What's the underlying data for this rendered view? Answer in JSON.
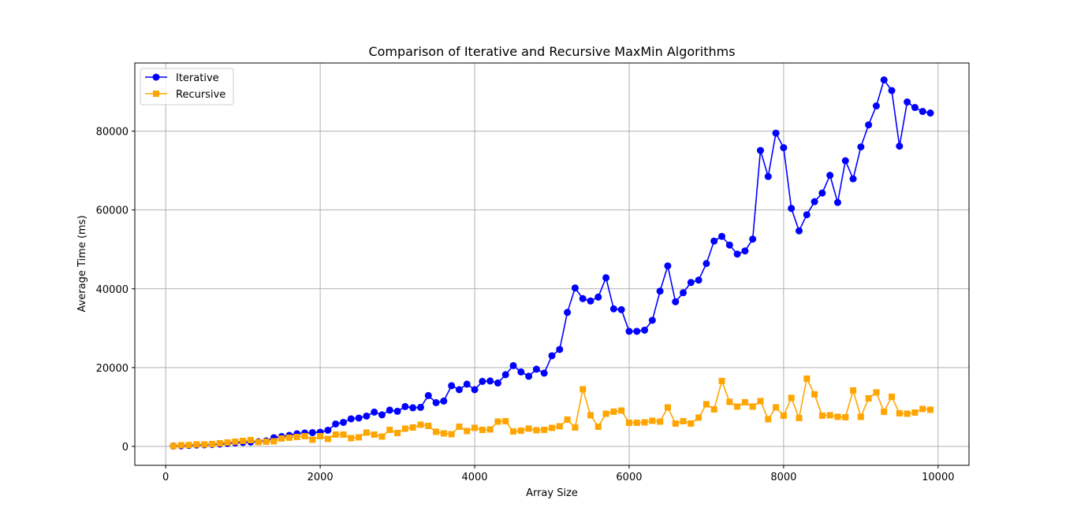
{
  "chart_data": {
    "type": "line",
    "title": "Comparison of Iterative and Recursive MaxMin Algorithms",
    "xlabel": "Array Size",
    "ylabel": "Average Time (ms)",
    "xlim": [
      -400,
      10400
    ],
    "ylim": [
      -4800,
      97300
    ],
    "xticks": [
      0,
      2000,
      4000,
      6000,
      8000,
      10000
    ],
    "yticks": [
      0,
      20000,
      40000,
      60000,
      80000
    ],
    "grid": true,
    "legend_position": "top-left",
    "x": [
      100,
      200,
      300,
      400,
      500,
      600,
      700,
      800,
      900,
      1000,
      1100,
      1200,
      1300,
      1400,
      1500,
      1600,
      1700,
      1800,
      1900,
      2000,
      2100,
      2200,
      2300,
      2400,
      2500,
      2600,
      2700,
      2800,
      2900,
      3000,
      3100,
      3200,
      3300,
      3400,
      3500,
      3600,
      3700,
      3800,
      3900,
      4000,
      4100,
      4200,
      4300,
      4400,
      4500,
      4600,
      4700,
      4800,
      4900,
      5000,
      5100,
      5200,
      5300,
      5400,
      5500,
      5600,
      5700,
      5800,
      5900,
      6000,
      6100,
      6200,
      6300,
      6400,
      6500,
      6600,
      6700,
      6800,
      6900,
      7000,
      7100,
      7200,
      7300,
      7400,
      7500,
      7600,
      7700,
      7800,
      7900,
      8000,
      8100,
      8200,
      8300,
      8400,
      8500,
      8600,
      8700,
      8800,
      8900,
      9000,
      9100,
      9200,
      9300,
      9400,
      9500,
      9600,
      9700,
      9800,
      9900
    ],
    "series": [
      {
        "name": "Iterative",
        "color": "#0000ff",
        "marker": "circle",
        "values": [
          100,
          150,
          250,
          350,
          400,
          500,
          600,
          750,
          900,
          1000,
          1100,
          1200,
          1400,
          2200,
          2500,
          2800,
          3200,
          3400,
          3500,
          3600,
          4100,
          5700,
          6100,
          7000,
          7200,
          7700,
          8700,
          8000,
          9200,
          8900,
          10100,
          9800,
          9900,
          12900,
          11100,
          11500,
          15400,
          14400,
          15800,
          14400,
          16500,
          16600,
          16100,
          18200,
          20500,
          18900,
          17800,
          19600,
          18600,
          23000,
          24600,
          34000,
          40200,
          37500,
          36900,
          37900,
          42800,
          34900,
          34700,
          29200,
          29200,
          29500,
          32000,
          39400,
          45800,
          36700,
          39000,
          41600,
          42200,
          46400,
          52100,
          53300,
          51100,
          48800,
          49600,
          52600,
          75100,
          68500,
          79500,
          75800,
          60400,
          54700,
          58800,
          62100,
          64300,
          68800,
          61900,
          72500,
          67900,
          76000,
          81600,
          86400,
          93000,
          90300,
          76200,
          87400,
          86000,
          85000,
          84600
        ]
      },
      {
        "name": "Recursive",
        "color": "#ffa500",
        "marker": "square",
        "values": [
          100,
          300,
          350,
          500,
          500,
          600,
          800,
          1000,
          1200,
          1400,
          1600,
          1100,
          1200,
          1300,
          2000,
          2200,
          2400,
          2600,
          1700,
          2600,
          1900,
          3000,
          3000,
          2100,
          2300,
          3500,
          3000,
          2500,
          4200,
          3400,
          4500,
          4800,
          5500,
          5200,
          3700,
          3300,
          3100,
          5000,
          3900,
          4700,
          4200,
          4300,
          6300,
          6400,
          3800,
          4000,
          4500,
          4100,
          4200,
          4700,
          5100,
          6800,
          4800,
          14500,
          7900,
          5000,
          8300,
          8800,
          9100,
          6000,
          6000,
          6100,
          6500,
          6300,
          9900,
          5800,
          6400,
          5800,
          7300,
          10700,
          9400,
          16600,
          11300,
          10100,
          11200,
          10100,
          11500,
          6900,
          9900,
          7800,
          12300,
          7200,
          17200,
          13200,
          7800,
          7900,
          7500,
          7400,
          14200,
          7500,
          12200,
          13700,
          8800,
          12600,
          8400,
          8300,
          8600,
          9500,
          9300
        ]
      }
    ]
  }
}
